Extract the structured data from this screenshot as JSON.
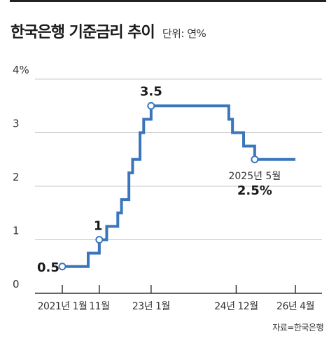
{
  "header": {
    "title": "한국은행 기준금리 추이",
    "unit": "단위: 연%"
  },
  "source": "자료=한국은행",
  "colors": {
    "line": "#3b76bd",
    "grid": "#c9c9c9",
    "axis": "#333333",
    "text": "#222222"
  },
  "chart_data": {
    "type": "line",
    "step": true,
    "title": "한국은행 기준금리 추이",
    "unit": "연%",
    "ylim": [
      0,
      4
    ],
    "yticks": [
      0,
      1,
      2,
      3,
      4
    ],
    "ytick_labels": [
      "0",
      "1",
      "2",
      "3",
      "4%"
    ],
    "xlim": [
      "2021-01",
      "2026-04"
    ],
    "xticks": [
      "2021-01",
      "2021-11",
      "2023-01",
      "2024-12",
      "2026-04"
    ],
    "xtick_labels": [
      "2021년 1월",
      "11월",
      "23년 1월",
      "24년 12월",
      "26년 4월"
    ],
    "grid": true,
    "series": [
      {
        "points": [
          {
            "x": "2021-01",
            "y": 0.5
          },
          {
            "x": "2021-08",
            "y": 0.75
          },
          {
            "x": "2021-11",
            "y": 1.0
          },
          {
            "x": "2022-01",
            "y": 1.25
          },
          {
            "x": "2022-04",
            "y": 1.5
          },
          {
            "x": "2022-05",
            "y": 1.75
          },
          {
            "x": "2022-07",
            "y": 2.25
          },
          {
            "x": "2022-08",
            "y": 2.5
          },
          {
            "x": "2022-10",
            "y": 3.0
          },
          {
            "x": "2022-11",
            "y": 3.25
          },
          {
            "x": "2023-01",
            "y": 3.5
          },
          {
            "x": "2024-10",
            "y": 3.25
          },
          {
            "x": "2024-11",
            "y": 3.0
          },
          {
            "x": "2025-02",
            "y": 2.75
          },
          {
            "x": "2025-05",
            "y": 2.5
          },
          {
            "x": "2026-04",
            "y": 2.5
          }
        ]
      }
    ],
    "annotations": [
      {
        "x": "2021-01",
        "y": 0.5,
        "label": "0.5",
        "sub": ""
      },
      {
        "x": "2021-11",
        "y": 1.0,
        "label": "1",
        "sub": ""
      },
      {
        "x": "2023-01",
        "y": 3.5,
        "label": "3.5",
        "sub": ""
      },
      {
        "x": "2025-05",
        "y": 2.5,
        "label": "2.5%",
        "sub": "2025년 5월"
      }
    ]
  }
}
